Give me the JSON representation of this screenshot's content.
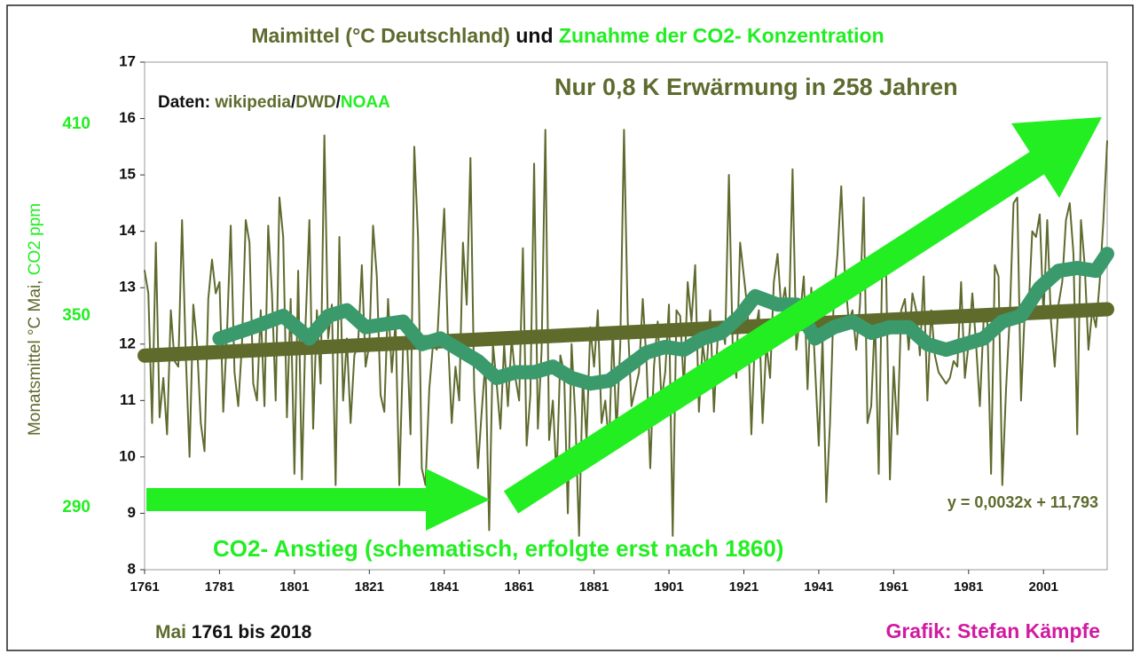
{
  "chart_data": {
    "type": "line",
    "title": [
      "Maimittel (°C Deutschland)",
      "und",
      "Zunahme der CO2- Konzentration"
    ],
    "y_label": [
      "Monatsmittel °C Mai,",
      "CO2 ppm"
    ],
    "annotations": {
      "source": [
        "Daten:",
        "wikipedia",
        "/",
        "DWD",
        "/",
        "NOAA"
      ],
      "headline": "Nur 0,8 K Erwärmung in 258 Jahren",
      "equation": "y = 0,0032x + 11,793",
      "co2": "CO2- Anstieg (schematisch, erfolgte erst nach 1860)",
      "period": [
        "Mai",
        "1761 bis 2018"
      ],
      "credit": "Grafik: Stefan Kämpfe"
    },
    "xlim": [
      1761,
      2018
    ],
    "xticks": [
      1761,
      1781,
      1801,
      1821,
      1841,
      1861,
      1881,
      1901,
      1921,
      1941,
      1961,
      1981,
      2001
    ],
    "ylim": [
      8,
      17
    ],
    "yticks": [
      8,
      9,
      10,
      11,
      12,
      13,
      14,
      15,
      16,
      17
    ],
    "y2lim": [
      270.6,
      429.4
    ],
    "y2ticks": [
      290,
      350,
      410
    ],
    "x": [
      1761,
      1762,
      1763,
      1764,
      1765,
      1766,
      1767,
      1768,
      1769,
      1770,
      1771,
      1772,
      1773,
      1774,
      1775,
      1776,
      1777,
      1778,
      1779,
      1780,
      1781,
      1782,
      1783,
      1784,
      1785,
      1786,
      1787,
      1788,
      1789,
      1790,
      1791,
      1792,
      1793,
      1794,
      1795,
      1796,
      1797,
      1798,
      1799,
      1800,
      1801,
      1802,
      1803,
      1804,
      1805,
      1806,
      1807,
      1808,
      1809,
      1810,
      1811,
      1812,
      1813,
      1814,
      1815,
      1816,
      1817,
      1818,
      1819,
      1820,
      1821,
      1822,
      1823,
      1824,
      1825,
      1826,
      1827,
      1828,
      1829,
      1830,
      1831,
      1832,
      1833,
      1834,
      1835,
      1836,
      1837,
      1838,
      1839,
      1840,
      1841,
      1842,
      1843,
      1844,
      1845,
      1846,
      1847,
      1848,
      1849,
      1850,
      1851,
      1852,
      1853,
      1854,
      1855,
      1856,
      1857,
      1858,
      1859,
      1860,
      1861,
      1862,
      1863,
      1864,
      1865,
      1866,
      1867,
      1868,
      1869,
      1870,
      1871,
      1872,
      1873,
      1874,
      1875,
      1876,
      1877,
      1878,
      1879,
      1880,
      1881,
      1882,
      1883,
      1884,
      1885,
      1886,
      1887,
      1888,
      1889,
      1890,
      1891,
      1892,
      1893,
      1894,
      1895,
      1896,
      1897,
      1898,
      1899,
      1900,
      1901,
      1902,
      1903,
      1904,
      1905,
      1906,
      1907,
      1908,
      1909,
      1910,
      1911,
      1912,
      1913,
      1914,
      1915,
      1916,
      1917,
      1918,
      1919,
      1920,
      1921,
      1922,
      1923,
      1924,
      1925,
      1926,
      1927,
      1928,
      1929,
      1930,
      1931,
      1932,
      1933,
      1934,
      1935,
      1936,
      1937,
      1938,
      1939,
      1940,
      1941,
      1942,
      1943,
      1944,
      1945,
      1946,
      1947,
      1948,
      1949,
      1950,
      1951,
      1952,
      1953,
      1954,
      1955,
      1956,
      1957,
      1958,
      1959,
      1960,
      1961,
      1962,
      1963,
      1964,
      1965,
      1966,
      1967,
      1968,
      1969,
      1970,
      1971,
      1972,
      1973,
      1974,
      1975,
      1976,
      1977,
      1978,
      1979,
      1980,
      1981,
      1982,
      1983,
      1984,
      1985,
      1986,
      1987,
      1988,
      1989,
      1990,
      1991,
      1992,
      1993,
      1994,
      1995,
      1996,
      1997,
      1998,
      1999,
      2000,
      2001,
      2002,
      2003,
      2004,
      2005,
      2006,
      2007,
      2008,
      2009,
      2010,
      2011,
      2012,
      2013,
      2014,
      2015,
      2016,
      2017,
      2018
    ],
    "series": [
      {
        "color": "#5e6b2e",
        "values": [
          13.3,
          12.9,
          10.6,
          13.8,
          10.7,
          11.4,
          10.4,
          12.6,
          11.7,
          11.6,
          14.2,
          11.8,
          10.0,
          12.7,
          12.0,
          10.6,
          10.1,
          12.8,
          13.5,
          12.9,
          13.1,
          10.8,
          12.2,
          14.1,
          11.5,
          10.9,
          12.0,
          14.2,
          13.8,
          11.3,
          11.0,
          12.6,
          10.9,
          14.1,
          12.9,
          11.0,
          14.6,
          13.9,
          10.7,
          12.8,
          9.7,
          13.3,
          9.6,
          12.4,
          14.2,
          10.5,
          12.6,
          11.3,
          15.7,
          12.1,
          12.7,
          9.5,
          13.9,
          11.0,
          12.1,
          10.6,
          11.8,
          12.0,
          13.4,
          11.6,
          12.0,
          14.1,
          13.2,
          11.1,
          10.8,
          12.8,
          11.5,
          12.4,
          9.5,
          11.9,
          12.2,
          10.4,
          15.5,
          13.9,
          9.8,
          9.5,
          11.2,
          12.0,
          11.9,
          13.2,
          14.4,
          12.1,
          10.6,
          11.6,
          11.0,
          13.8,
          12.7,
          15.3,
          11.2,
          9.8,
          10.8,
          11.7,
          8.7,
          12.0,
          11.3,
          10.5,
          12.0,
          10.9,
          12.1,
          11.4,
          11.0,
          13.7,
          10.2,
          11.1,
          15.2,
          10.5,
          11.9,
          15.8,
          10.3,
          11.0,
          9.6,
          11.8,
          11.5,
          9.0,
          12.0,
          10.7,
          8.6,
          11.4,
          10.3,
          12.3,
          11.6,
          12.6,
          10.6,
          11.0,
          10.2,
          12.3,
          10.4,
          12.0,
          15.8,
          12.4,
          10.9,
          11.2,
          11.5,
          12.8,
          11.7,
          9.8,
          11.6,
          12.4,
          11.0,
          11.5,
          12.7,
          8.6,
          12.6,
          12.5,
          11.2,
          13.1,
          12.4,
          13.4,
          10.8,
          12.0,
          11.5,
          12.6,
          10.8,
          12.1,
          12.4,
          12.0,
          15.0,
          12.0,
          11.4,
          13.8,
          13.2,
          12.6,
          10.4,
          12.2,
          12.6,
          10.6,
          12.0,
          11.4,
          13.1,
          13.6,
          12.6,
          13.0,
          12.3,
          15.1,
          11.9,
          12.5,
          13.2,
          11.2,
          13.0,
          11.6,
          10.2,
          12.1,
          9.2,
          10.6,
          12.8,
          13.6,
          14.8,
          13.2,
          12.4,
          12.6,
          11.9,
          12.7,
          14.6,
          10.6,
          10.9,
          12.5,
          9.7,
          13.7,
          13.2,
          9.6,
          11.6,
          10.4,
          12.6,
          12.8,
          11.9,
          12.9,
          12.6,
          11.8,
          13.2,
          11.0,
          12.6,
          11.8,
          11.5,
          11.4,
          11.3,
          11.4,
          11.7,
          11.6,
          13.1,
          11.4,
          12.0,
          12.9,
          12.0,
          10.9,
          12.4,
          12.4,
          9.7,
          13.4,
          13.2,
          9.5,
          11.2,
          12.5,
          14.5,
          14.6,
          11.0,
          12.6,
          12.6,
          14.0,
          13.9,
          14.3,
          12.5,
          14.2,
          12.4,
          11.6,
          12.7,
          13.1,
          14.2,
          14.5,
          13.6,
          10.4,
          14.2,
          13.4,
          11.9,
          12.6,
          12.3,
          13.1,
          14.2,
          15.6
        ]
      },
      {
        "color": "#3a9a6b",
        "x": [
          1781,
          1790,
          1798,
          1805,
          1810,
          1815,
          1820,
          1830,
          1835,
          1840,
          1845,
          1850,
          1855,
          1860,
          1865,
          1870,
          1875,
          1880,
          1885,
          1890,
          1895,
          1900,
          1905,
          1910,
          1915,
          1920,
          1924,
          1930,
          1935,
          1940,
          1945,
          1950,
          1955,
          1960,
          1965,
          1970,
          1975,
          1980,
          1985,
          1990,
          1995,
          2000,
          2005,
          2010,
          2015,
          2018
        ],
        "values": [
          12.1,
          12.3,
          12.5,
          12.1,
          12.5,
          12.6,
          12.3,
          12.4,
          12.0,
          12.1,
          11.9,
          11.7,
          11.4,
          11.5,
          11.5,
          11.6,
          11.4,
          11.3,
          11.35,
          11.6,
          11.85,
          11.95,
          11.9,
          12.1,
          12.2,
          12.5,
          12.85,
          12.7,
          12.7,
          12.1,
          12.3,
          12.4,
          12.2,
          12.3,
          12.3,
          12.0,
          11.9,
          12.0,
          12.1,
          12.4,
          12.5,
          13.0,
          13.3,
          13.35,
          13.3,
          13.6
        ]
      }
    ],
    "trend": {
      "color": "#5f6b2b",
      "x": [
        1761,
        2018
      ],
      "values": [
        11.796,
        12.618
      ]
    }
  }
}
